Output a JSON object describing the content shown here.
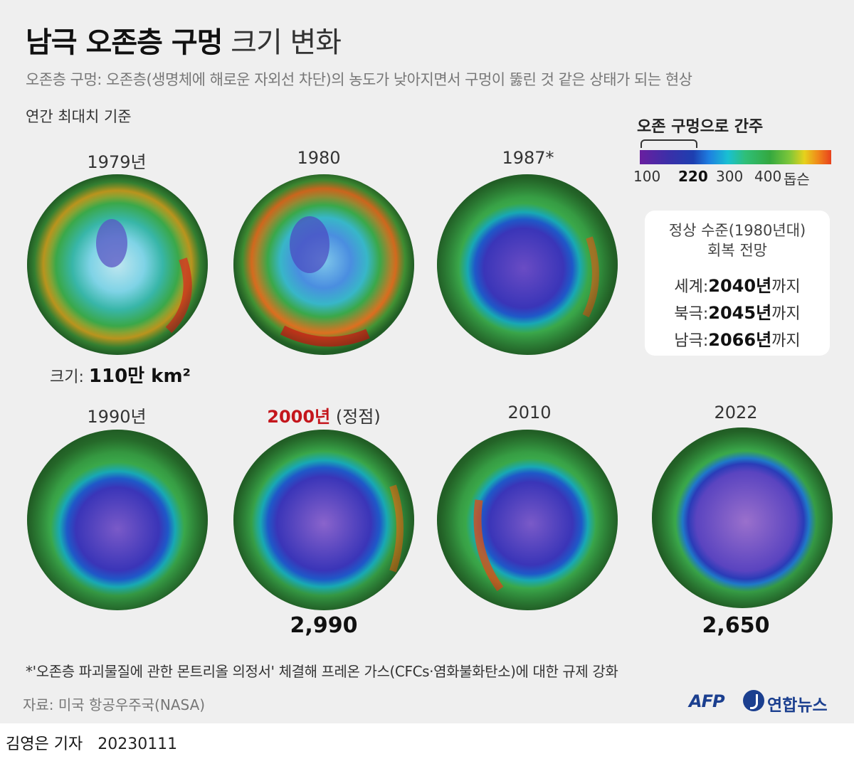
{
  "header": {
    "title_bold": "남극 오존층 구멍",
    "title_light": "크기 변화",
    "subtitle": "오존층 구멍: 오존층(생명체에 해로운 자외선 차단)의 농도가 낮아지면서 구멍이 뚫린 것 같은 상태가 되는 현상",
    "basis": "연간 최대치 기준"
  },
  "globes": [
    {
      "year": "1979년",
      "hole": "none",
      "size_label": "크기:",
      "size_value": "110만 km²"
    },
    {
      "year": "1980",
      "hole": "small"
    },
    {
      "year": "1987*",
      "hole": "large"
    },
    {
      "year": "1990년",
      "hole": "large"
    },
    {
      "year_peak": "2000년",
      "year_suffix": "(정점)",
      "hole": "largest",
      "value": "2,990"
    },
    {
      "year": "2010",
      "hole": "large"
    },
    {
      "year": "2022",
      "hole": "largest",
      "value": "2,650"
    }
  ],
  "legend": {
    "title": "오존 구멍으로 간주",
    "ticks": [
      "100",
      "220",
      "300",
      "400",
      "돕슨"
    ],
    "colors": [
      "#6a1fa0",
      "#1d3fb0",
      "#19c0d2",
      "#34a83f",
      "#e6d11c",
      "#e8401d"
    ]
  },
  "recovery": {
    "heading_1": "정상 수준(1980년대)",
    "heading_2": "회복 전망",
    "rows": [
      {
        "label": "세계:",
        "year": "2040년",
        "suffix": "까지"
      },
      {
        "label": "북극:",
        "year": "2045년",
        "suffix": "까지"
      },
      {
        "label": "남극:",
        "year": "2066년",
        "suffix": "까지"
      }
    ]
  },
  "footer": {
    "footnote": "*'오존층 파괴물질에 관한 몬트리올 의정서' 체결해 프레온 가스(CFCs·염화불화탄소)에 대한 규제 강화",
    "source": "자료: 미국 항공우주국(NASA)",
    "afp": "AFP",
    "yonhap": "연합뉴스",
    "reporter": "김영은 기자",
    "date": "20230111"
  }
}
